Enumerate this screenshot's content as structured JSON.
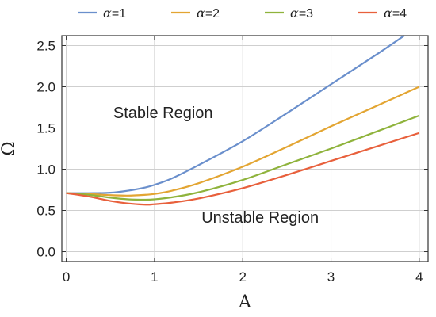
{
  "chart_data": {
    "type": "line",
    "xlabel": "A",
    "ylabel": "Ω",
    "xlim": [
      -0.05,
      4.1
    ],
    "ylim": [
      -0.12,
      2.62
    ],
    "xticks": [
      0,
      1,
      2,
      3,
      4
    ],
    "yticks": [
      0.0,
      0.5,
      1.0,
      1.5,
      2.0,
      2.5
    ],
    "x_tick_labels": [
      "0",
      "1",
      "2",
      "3",
      "4"
    ],
    "y_tick_labels": [
      "0.0",
      "0.5",
      "1.0",
      "1.5",
      "2.0",
      "2.5"
    ],
    "grid": true,
    "legend_position": "top",
    "annotations": [
      {
        "text": "Stable Region",
        "x": 1.0,
        "y": 1.62
      },
      {
        "text": "Unstable Region",
        "x": 2.0,
        "y": 0.35
      }
    ],
    "series": [
      {
        "name": "α=1",
        "symbol": "α",
        "suffix": "=1",
        "color": "#6a8fcc",
        "x": [
          0,
          0.25,
          0.5,
          0.7,
          0.9,
          1.0,
          1.2,
          1.5,
          2.0,
          2.5,
          3.0,
          3.5,
          3.83
        ],
        "y": [
          0.71,
          0.71,
          0.715,
          0.74,
          0.78,
          0.81,
          0.89,
          1.05,
          1.34,
          1.68,
          2.03,
          2.38,
          2.62
        ]
      },
      {
        "name": "α=2",
        "symbol": "α",
        "suffix": "=2",
        "color": "#e3a532",
        "x": [
          0,
          0.25,
          0.5,
          0.7,
          0.9,
          1.0,
          1.2,
          1.5,
          2.0,
          2.5,
          3.0,
          3.5,
          4.0
        ],
        "y": [
          0.71,
          0.7,
          0.685,
          0.68,
          0.69,
          0.7,
          0.74,
          0.83,
          1.03,
          1.27,
          1.52,
          1.76,
          2.0
        ]
      },
      {
        "name": "α=3",
        "symbol": "α",
        "suffix": "=3",
        "color": "#8fb33c",
        "x": [
          0,
          0.25,
          0.5,
          0.7,
          0.9,
          1.0,
          1.2,
          1.5,
          2.0,
          2.5,
          3.0,
          3.5,
          4.0
        ],
        "y": [
          0.71,
          0.69,
          0.655,
          0.635,
          0.63,
          0.635,
          0.66,
          0.72,
          0.87,
          1.06,
          1.25,
          1.45,
          1.65
        ]
      },
      {
        "name": "α=4",
        "symbol": "α",
        "suffix": "=4",
        "color": "#e8603c",
        "x": [
          0,
          0.25,
          0.5,
          0.7,
          0.9,
          1.0,
          1.2,
          1.5,
          2.0,
          2.5,
          3.0,
          3.5,
          4.0
        ],
        "y": [
          0.71,
          0.67,
          0.615,
          0.585,
          0.57,
          0.575,
          0.595,
          0.645,
          0.77,
          0.93,
          1.1,
          1.27,
          1.44
        ]
      }
    ]
  }
}
